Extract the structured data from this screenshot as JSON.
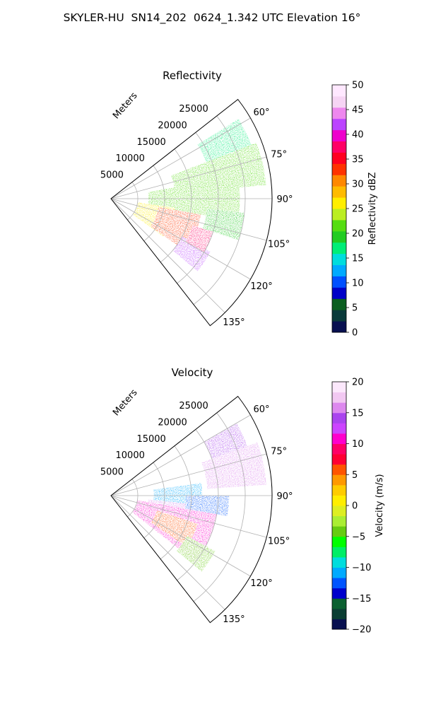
{
  "title": "SKYLER-HU  SN14_202  0624_1.342 UTC Elevation 16°",
  "chart_data": [
    {
      "type": "heatmap",
      "projection": "polar-sector",
      "title": "Reflectivity",
      "radial_label": "Meters",
      "radial_ticks": [
        5000,
        10000,
        15000,
        20000,
        25000
      ],
      "radial_tick_labels": [
        "5000",
        "10000",
        "15000",
        "20000",
        "25000"
      ],
      "r_max": 30000,
      "azimuth_range_deg": [
        52,
        142
      ],
      "azimuth_ticks_deg": [
        60,
        75,
        90,
        105,
        120,
        135
      ],
      "azimuth_tick_labels": [
        "60°",
        "75°",
        "90°",
        "105°",
        "120°",
        "135°"
      ],
      "grid": true,
      "colorbar": {
        "label": "Reflectivity dBZ",
        "range": [
          0,
          50
        ],
        "ticks": [
          0,
          5,
          10,
          15,
          20,
          25,
          30,
          35,
          40,
          45,
          50
        ],
        "tick_labels": [
          "0",
          "5",
          "10",
          "15",
          "20",
          "25",
          "30",
          "35",
          "40",
          "45",
          "50"
        ]
      },
      "echo_regions": [
        {
          "az": [
            58,
            70
          ],
          "r": [
            19000,
            28000
          ],
          "value": 18
        },
        {
          "az": [
            69,
            85
          ],
          "r": [
            12000,
            29000
          ],
          "value": 21
        },
        {
          "az": [
            80,
            100
          ],
          "r": [
            7000,
            24000
          ],
          "value": 22
        },
        {
          "az": [
            98,
            126
          ],
          "r": [
            5000,
            12000
          ],
          "value": 26
        },
        {
          "az": [
            100,
            125
          ],
          "r": [
            9000,
            17000
          ],
          "value": 34
        },
        {
          "az": [
            118,
            130
          ],
          "r": [
            15000,
            21000
          ],
          "value": 42
        },
        {
          "az": [
            108,
            120
          ],
          "r": [
            16000,
            20000
          ],
          "value": 38
        },
        {
          "az": [
            96,
            108
          ],
          "r": [
            18000,
            25000
          ],
          "value": 20
        }
      ]
    },
    {
      "type": "heatmap",
      "projection": "polar-sector",
      "title": "Velocity",
      "radial_label": "Meters",
      "radial_ticks": [
        5000,
        10000,
        15000,
        20000,
        25000
      ],
      "radial_tick_labels": [
        "5000",
        "10000",
        "15000",
        "20000",
        "25000"
      ],
      "r_max": 30000,
      "azimuth_range_deg": [
        52,
        142
      ],
      "azimuth_ticks_deg": [
        60,
        75,
        90,
        105,
        120,
        135
      ],
      "azimuth_tick_labels": [
        "60°",
        "75°",
        "90°",
        "105°",
        "120°",
        "135°"
      ],
      "grid": true,
      "colorbar": {
        "label": "Velocity (m/s)",
        "range": [
          -20,
          20
        ],
        "ticks": [
          -20,
          -15,
          -10,
          -5,
          0,
          5,
          10,
          15,
          20
        ],
        "tick_labels": [
          "−20",
          "−15",
          "−10",
          "−5",
          "0",
          "5",
          "10",
          "15",
          "20"
        ]
      },
      "echo_regions": [
        {
          "az": [
            60,
            70
          ],
          "r": [
            20000,
            27000
          ],
          "value": 14
        },
        {
          "az": [
            70,
            86
          ],
          "r": [
            18000,
            29000
          ],
          "value": 15
        },
        {
          "az": [
            82,
            98
          ],
          "r": [
            8000,
            17000
          ],
          "value": -11
        },
        {
          "az": [
            90,
            100
          ],
          "r": [
            14000,
            22000
          ],
          "value": -12
        },
        {
          "az": [
            96,
            106
          ],
          "r": [
            7000,
            14000
          ],
          "value": 16
        },
        {
          "az": [
            100,
            128
          ],
          "r": [
            5000,
            20000
          ],
          "value": 10
        },
        {
          "az": [
            108,
            124
          ],
          "r": [
            9000,
            17000
          ],
          "value": 5
        },
        {
          "az": [
            118,
            130
          ],
          "r": [
            16000,
            22000
          ],
          "value": -5
        }
      ]
    }
  ],
  "colors": {
    "reflectivity_stops": [
      "#081050",
      "#0a3a3a",
      "#0b5e1f",
      "#0000c8",
      "#0050ff",
      "#00aaff",
      "#00dddd",
      "#00ee77",
      "#22cc22",
      "#55dd11",
      "#bbee22",
      "#ffee00",
      "#ffbb00",
      "#ff8800",
      "#ff3300",
      "#ff0020",
      "#ff0066",
      "#ee00cc",
      "#bb44ff",
      "#ee88ee",
      "#f6d4f4",
      "#ffe8ff"
    ],
    "velocity_stops": [
      "#081050",
      "#0b3e33",
      "#0b6030",
      "#0000cc",
      "#0055ff",
      "#00aaff",
      "#00dddd",
      "#00ee66",
      "#00ff00",
      "#66cc11",
      "#aaee33",
      "#ddee22",
      "#ffee00",
      "#ffcc00",
      "#ff9900",
      "#ff5500",
      "#ff0033",
      "#ff0066",
      "#ff00cc",
      "#cc44ff",
      "#aa44ee",
      "#dd88ee",
      "#f2c8f2",
      "#fce8fc"
    ]
  }
}
